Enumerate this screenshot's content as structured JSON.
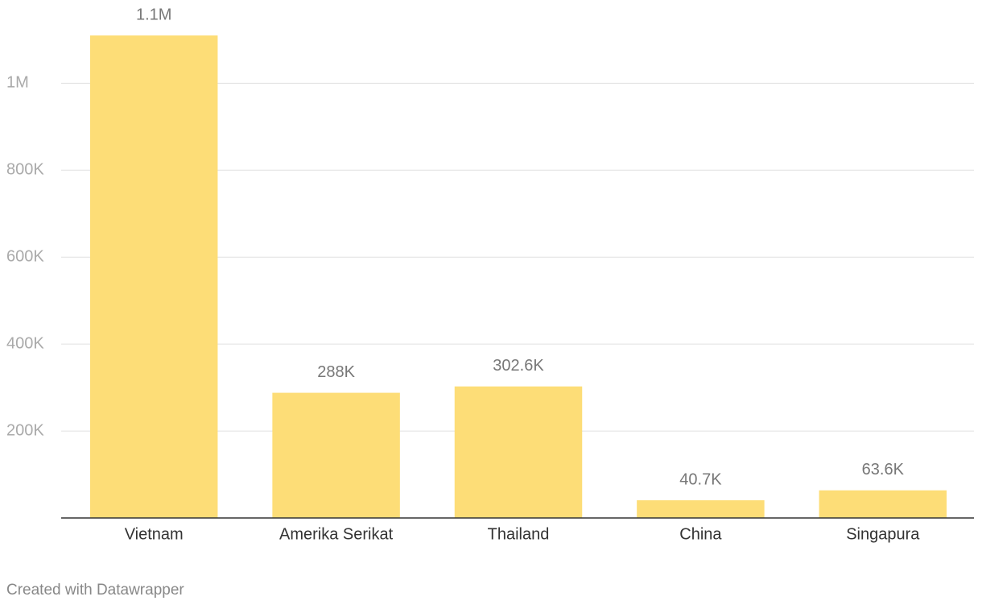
{
  "chart_data": {
    "type": "bar",
    "categories": [
      "Vietnam",
      "Amerika Serikat",
      "Thailand",
      "China",
      "Singapura"
    ],
    "values": [
      1110000,
      288000,
      302600,
      40700,
      63600
    ],
    "value_labels": [
      "1.1M",
      "288K",
      "302.6K",
      "40.7K",
      "63.6K"
    ],
    "color": "#fddd77",
    "ylim": [
      0,
      1110000
    ],
    "yticks": [
      {
        "value": 200000,
        "label": "200K"
      },
      {
        "value": 400000,
        "label": "400K"
      },
      {
        "value": 600000,
        "label": "600K"
      },
      {
        "value": 800000,
        "label": "800K"
      },
      {
        "value": 1000000,
        "label": "1M"
      }
    ],
    "grid": true,
    "footer": "Created with Datawrapper"
  }
}
